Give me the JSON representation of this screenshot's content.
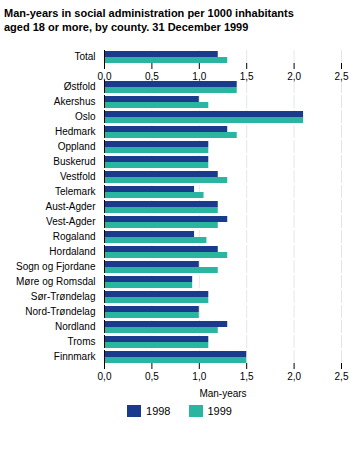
{
  "chart_data": {
    "type": "bar",
    "orientation": "horizontal",
    "title": "Man-years in social administration per 1000 inhabitants",
    "subtitle": "aged 18 or more, by county. 31 December 1999",
    "categories": [
      "Total",
      null,
      "Østfold",
      "Akershus",
      "Oslo",
      "Hedmark",
      "Oppland",
      "Buskerud",
      "Vestfold",
      "Telemark",
      "Aust-Agder",
      "Vest-Agder",
      "Rogaland",
      "Hordaland",
      "Sogn og Fjordane",
      "Møre og Romsdal",
      "Sør-Trøndelag",
      "Nord-Trøndelag",
      "Nordland",
      "Troms",
      "Finnmark"
    ],
    "series": [
      {
        "name": "1998",
        "color": "#1a3a8c",
        "values": [
          1.2,
          null,
          1.4,
          1.0,
          2.1,
          1.3,
          1.1,
          1.1,
          1.2,
          0.95,
          1.2,
          1.3,
          0.95,
          1.2,
          1.0,
          0.93,
          1.1,
          1.0,
          1.3,
          1.1,
          1.5
        ]
      },
      {
        "name": "1999",
        "color": "#2ab5a0",
        "values": [
          1.3,
          null,
          1.4,
          1.1,
          2.1,
          1.4,
          1.1,
          1.1,
          1.3,
          1.05,
          1.2,
          1.2,
          1.08,
          1.3,
          1.2,
          0.93,
          1.1,
          1.0,
          1.2,
          1.1,
          1.5
        ]
      }
    ],
    "xlabel": "Man-years",
    "xlim": [
      0,
      2.5
    ],
    "xticks": [
      {
        "value": 0.0,
        "label": "0,0"
      },
      {
        "value": 0.5,
        "label": "0,5"
      },
      {
        "value": 1.0,
        "label": "1,0"
      },
      {
        "value": 1.5,
        "label": "1,5"
      },
      {
        "value": 2.0,
        "label": "2,0"
      },
      {
        "value": 2.5,
        "label": "2,5"
      }
    ],
    "grid": true,
    "legend": "bottom"
  }
}
